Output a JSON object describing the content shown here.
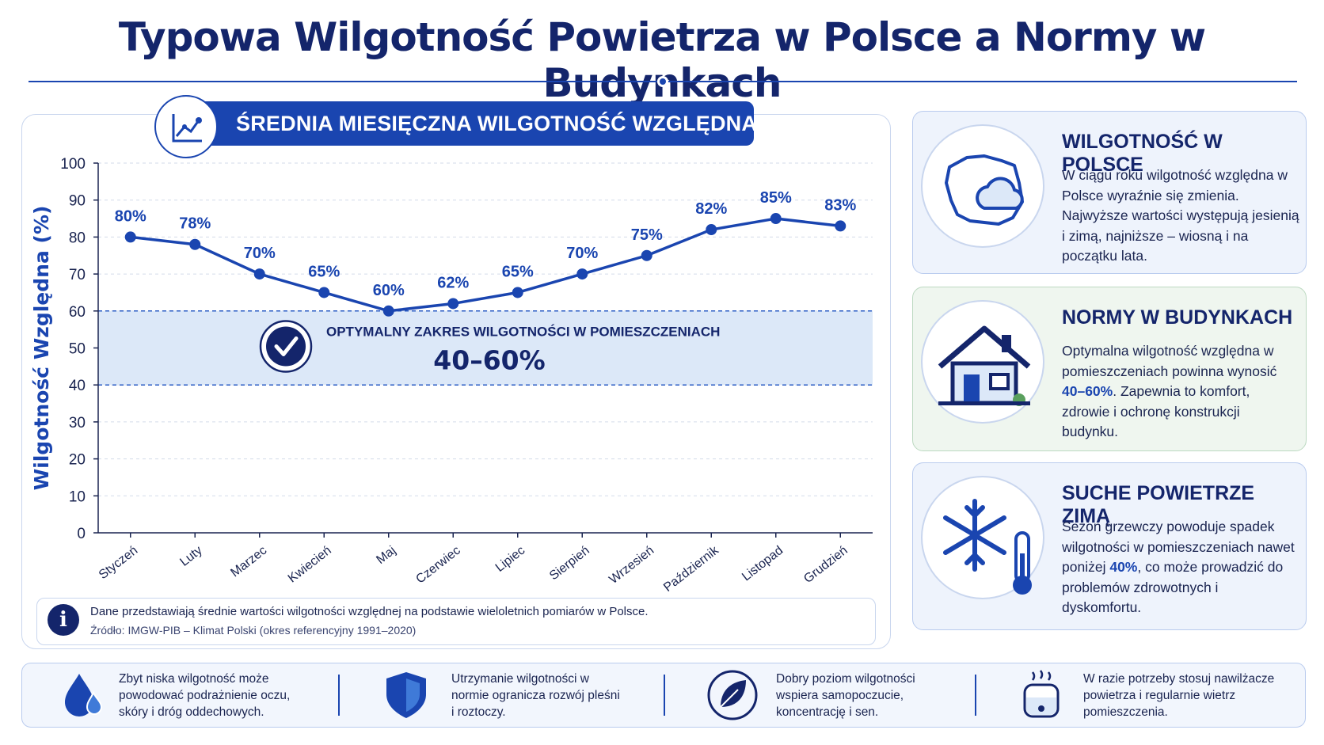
{
  "title": "Typowa Wilgotność Powietrza w Polsce a Normy w Budynkach",
  "chart_header": "ŚREDNIA MIESIĘCZNA WILGOTNOŚĆ WZGLĘDNA W POLSCE",
  "chart_data": {
    "type": "line",
    "title": "ŚREDNIA MIESIĘCZNA WILGOTNOŚĆ WZGLĘDNA W POLSCE",
    "xlabel": "",
    "ylabel": "Wilgotność Względna (%)",
    "ylim": [
      0,
      100
    ],
    "yticks": [
      0,
      10,
      20,
      30,
      40,
      50,
      60,
      70,
      80,
      90,
      100
    ],
    "grid": true,
    "categories": [
      "Styczeń",
      "Luty",
      "Marzec",
      "Kwiecień",
      "Maj",
      "Czerwiec",
      "Lipiec",
      "Sierpień",
      "Wrzesień",
      "Październik",
      "Listopad",
      "Grudzień"
    ],
    "values": [
      80,
      78,
      70,
      65,
      60,
      62,
      65,
      70,
      75,
      82,
      85,
      83
    ],
    "data_labels": [
      "80%",
      "78%",
      "70%",
      "65%",
      "60%",
      "62%",
      "65%",
      "70%",
      "75%",
      "82%",
      "85%",
      "83%"
    ],
    "band": {
      "from": 40,
      "to": 60,
      "label": "OPTYMALNY ZAKRES WILGOTNOŚCI W POMIESZCZENIACH",
      "value_label": "40–60%"
    },
    "colors": {
      "line": "#1a45b0",
      "band": "#dce8f8",
      "band_border": "#2a5bc4"
    }
  },
  "note": {
    "text": "Dane przedstawiają średnie wartości wilgotności względnej na podstawie wieloletnich pomiarów w Polsce.",
    "source": "Źródło: IMGW-PIB – Klimat Polski (okres referencyjny 1991–2020)",
    "icon": "info-icon"
  },
  "cards": [
    {
      "heading": "WILGOTNOŚĆ W POLSCE",
      "text": "W ciągu roku wilgotność względna w Polsce wyraźnie się zmienia. Najwyższe wartości występują jesienią i zimą, najniższe – wiosną i na początku lata.",
      "icon": "poland-map-cloud-icon"
    },
    {
      "heading": "NORMY W BUDYNKACH",
      "text_before": "Optymalna wilgotność względna w pomieszczeniach powinna wynosić",
      "highlight": "40–60%",
      "text_after": ". Zapewnia to komfort, zdrowie i ochronę konstrukcji budynku.",
      "icon": "house-icon"
    },
    {
      "heading": "SUCHE POWIETRZE ZIMĄ",
      "text_before": "Sezon grzewczy powoduje spadek wilgotności w pomieszczeniach nawet poniżej",
      "highlight": "40%",
      "text_after": ", co może prowadzić do problemów zdrowotnych i dyskomfortu.",
      "icon": "snowflake-thermometer-icon"
    }
  ],
  "tips": [
    {
      "text": "Zbyt niska wilgotność może powodować podrażnienie oczu, skóry i dróg oddechowych.",
      "icon": "water-drop-icon"
    },
    {
      "text": "Utrzymanie wilgotności w normie ogranicza rozwój pleśni i roztoczy.",
      "icon": "shield-icon"
    },
    {
      "text": "Dobry poziom wilgotności wspiera samopoczucie, koncentrację i sen.",
      "icon": "leaf-icon"
    },
    {
      "text": "W razie potrzeby stosuj nawilżacze powietrza i regularnie wietrz pomieszczenia.",
      "icon": "humidifier-icon"
    }
  ]
}
